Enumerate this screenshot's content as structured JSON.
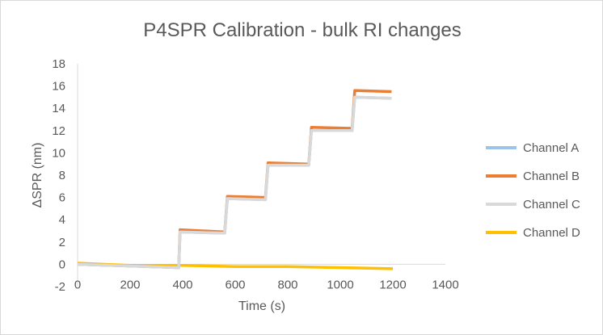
{
  "chart_data": {
    "type": "line",
    "title": "P4SPR Calibration - bulk RI changes",
    "xlabel": "Time (s)",
    "ylabel": "ΔSPR (nm)",
    "xlim": [
      0,
      1400
    ],
    "ylim": [
      -2,
      18
    ],
    "x_ticks": [
      "0",
      "200",
      "400",
      "600",
      "800",
      "1000",
      "1200",
      "1400"
    ],
    "y_ticks": [
      "-2",
      "0",
      "2",
      "4",
      "6",
      "8",
      "10",
      "12",
      "14",
      "16",
      "18"
    ],
    "grid": false,
    "legend_position": "right",
    "series": [
      {
        "name": "Channel A",
        "color": "#9dc3e6",
        "points": [
          [
            0,
            0
          ],
          [
            385,
            -0.3
          ],
          [
            390,
            2.9
          ],
          [
            560,
            2.8
          ],
          [
            570,
            5.9
          ],
          [
            715,
            5.8
          ],
          [
            725,
            8.9
          ],
          [
            880,
            8.9
          ],
          [
            890,
            12.0
          ],
          [
            1045,
            12.0
          ],
          [
            1055,
            15.0
          ],
          [
            1195,
            14.9
          ]
        ]
      },
      {
        "name": "Channel B",
        "color": "#ed7d31",
        "points": [
          [
            0,
            0
          ],
          [
            385,
            -0.3
          ],
          [
            390,
            3.1
          ],
          [
            560,
            2.9
          ],
          [
            570,
            6.1
          ],
          [
            715,
            6.0
          ],
          [
            725,
            9.1
          ],
          [
            880,
            9.0
          ],
          [
            890,
            12.3
          ],
          [
            1045,
            12.2
          ],
          [
            1055,
            15.6
          ],
          [
            1195,
            15.5
          ]
        ]
      },
      {
        "name": "Channel C",
        "color": "#d9d9d9",
        "points": [
          [
            0,
            0
          ],
          [
            385,
            -0.3
          ],
          [
            390,
            2.9
          ],
          [
            560,
            2.8
          ],
          [
            570,
            5.9
          ],
          [
            715,
            5.8
          ],
          [
            725,
            8.9
          ],
          [
            880,
            8.9
          ],
          [
            890,
            12.0
          ],
          [
            1045,
            12.0
          ],
          [
            1055,
            15.0
          ],
          [
            1195,
            14.9
          ]
        ]
      },
      {
        "name": "Channel D",
        "color": "#ffc000",
        "points": [
          [
            0,
            0.1
          ],
          [
            200,
            -0.1
          ],
          [
            400,
            -0.1
          ],
          [
            600,
            -0.2
          ],
          [
            800,
            -0.2
          ],
          [
            1000,
            -0.3
          ],
          [
            1200,
            -0.4
          ]
        ]
      }
    ]
  }
}
